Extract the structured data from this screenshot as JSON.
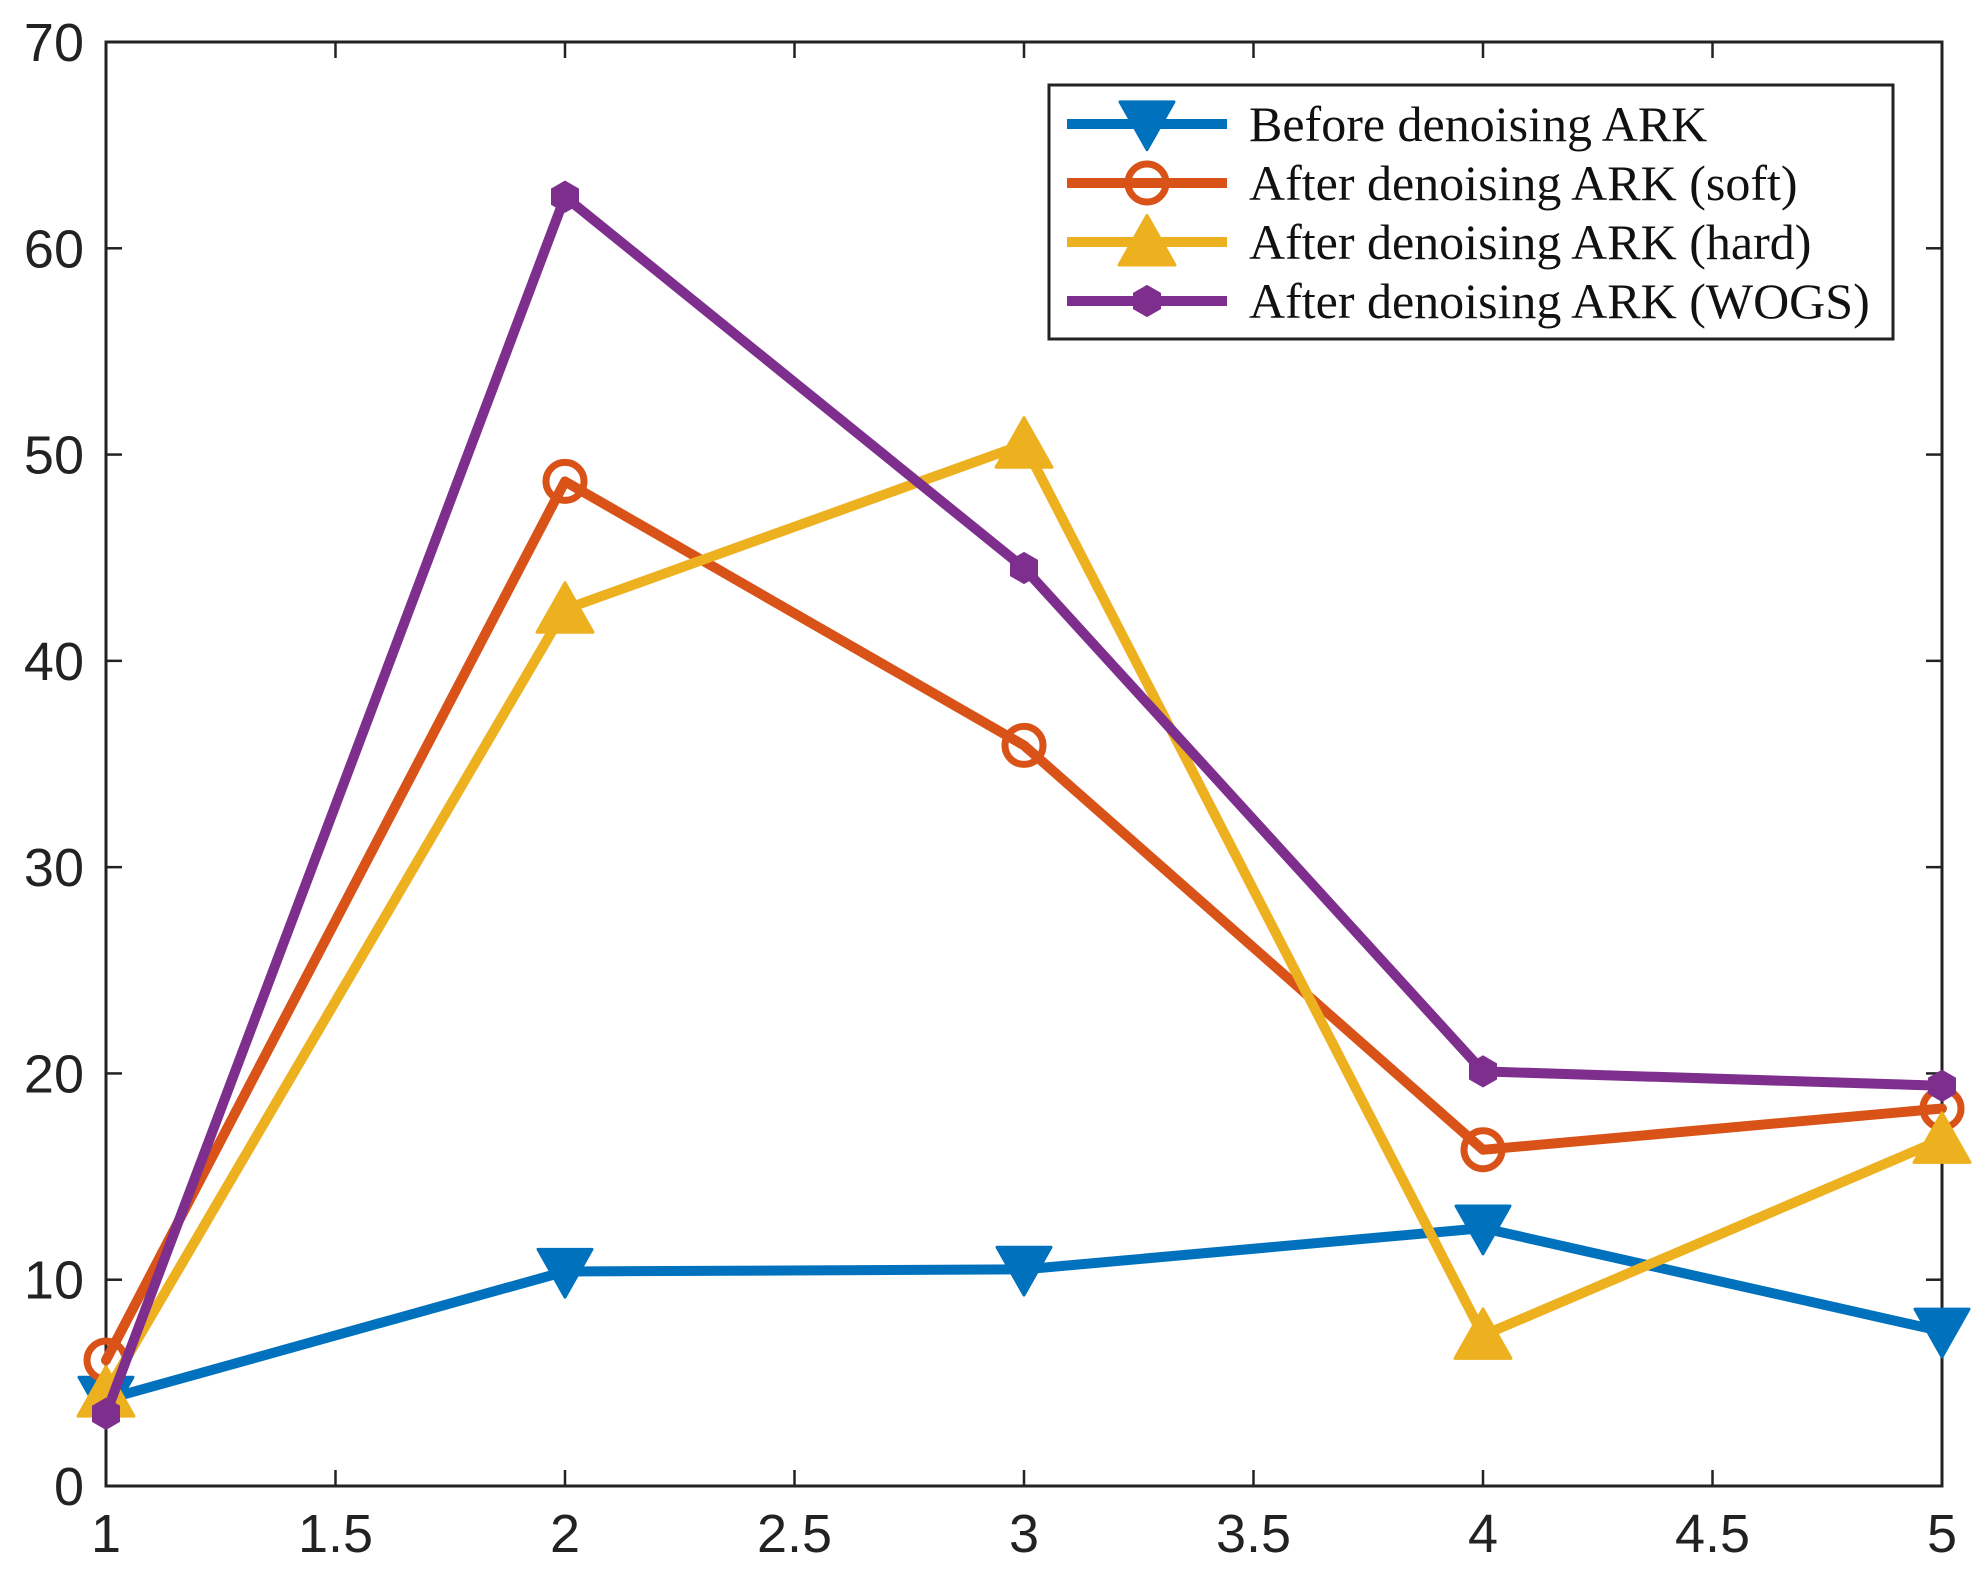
{
  "chart_data": {
    "type": "line",
    "title": "",
    "xlabel": "",
    "ylabel": "",
    "xlim": [
      1,
      5
    ],
    "ylim": [
      0,
      70
    ],
    "x": [
      1,
      2,
      3,
      4,
      5
    ],
    "xticks": [
      1,
      1.5,
      2,
      2.5,
      3,
      3.5,
      4,
      4.5,
      5
    ],
    "xtick_labels": [
      "1",
      "1.5",
      "2",
      "2.5",
      "3",
      "3.5",
      "4",
      "4.5",
      "5"
    ],
    "yticks": [
      0,
      10,
      20,
      30,
      40,
      50,
      60,
      70
    ],
    "ytick_labels": [
      "0",
      "10",
      "20",
      "30",
      "40",
      "50",
      "60",
      "70"
    ],
    "grid": false,
    "legend_position": "top-right",
    "series": [
      {
        "name": "Before denoising ARK",
        "values": [
          4.2,
          10.4,
          10.5,
          12.5,
          7.5
        ],
        "color": "#0072BD",
        "marker": "triangle-down"
      },
      {
        "name": "After denoising ARK (soft)",
        "values": [
          6.1,
          48.7,
          35.9,
          16.3,
          18.3
        ],
        "color": "#D95319",
        "marker": "circle"
      },
      {
        "name": "After denoising ARK (hard)",
        "values": [
          4.5,
          42.5,
          50.5,
          7.3,
          16.8
        ],
        "color": "#EDB120",
        "marker": "triangle-up"
      },
      {
        "name": "After denoising ARK (WOGS)",
        "values": [
          3.5,
          62.5,
          44.5,
          20.1,
          19.4
        ],
        "color": "#7E2F8E",
        "marker": "hexagon"
      }
    ]
  }
}
